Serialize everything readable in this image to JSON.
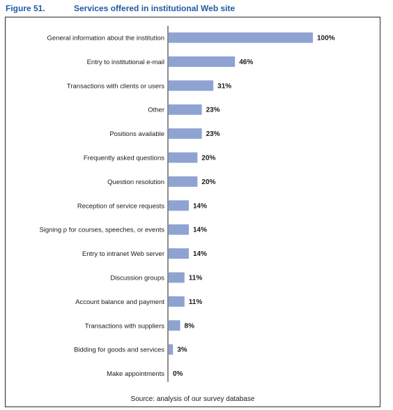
{
  "figure": {
    "number": "Figure 51.",
    "title": "Services offered in institutional Web site",
    "source": "Source: analysis of our survey database"
  },
  "chart_data": {
    "type": "bar",
    "orientation": "horizontal",
    "categories": [
      "General information about the institution",
      "Entry to institutional e-mail",
      "Transactions with clients or users",
      "Other",
      "Positions available",
      "Frequently asked questions",
      "Question resolution",
      "Reception of service requests",
      "Signing p for courses, speeches, or events",
      "Entry to intranet Web server",
      "Discussion groups",
      "Account balance and payment",
      "Transactions with suppliers",
      "Bidding for goods and services",
      "Make appointments"
    ],
    "values": [
      100,
      46,
      31,
      23,
      23,
      20,
      20,
      14,
      14,
      14,
      11,
      11,
      8,
      3,
      0
    ],
    "value_labels": [
      "100%",
      "46%",
      "31%",
      "23%",
      "23%",
      "20%",
      "20%",
      "14%",
      "14%",
      "14%",
      "11%",
      "11%",
      "8%",
      "3%",
      "0%"
    ],
    "xlim": [
      0,
      100
    ],
    "bar_color": "#8fa3d3",
    "grid": false,
    "legend": "none"
  }
}
